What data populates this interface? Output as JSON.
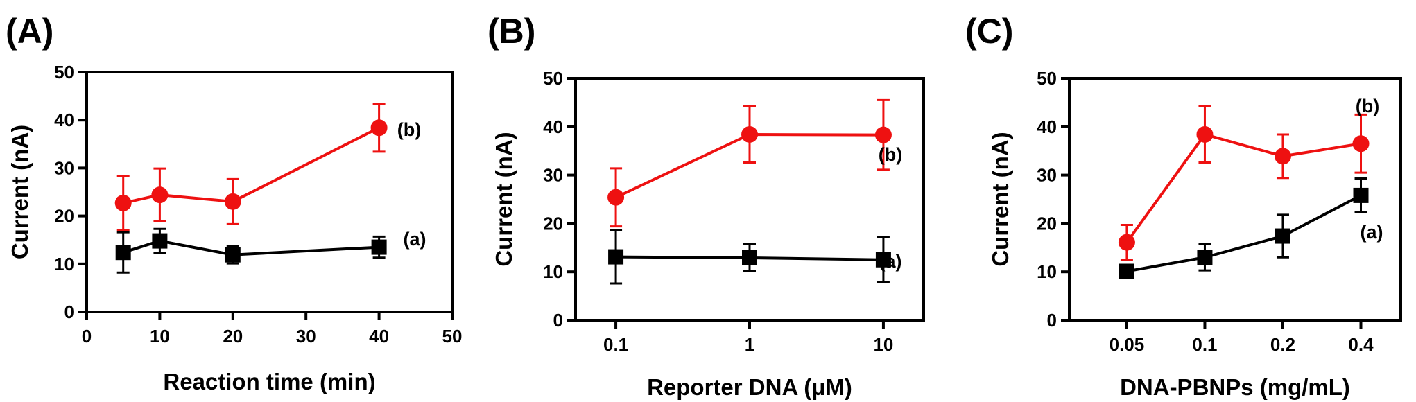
{
  "figure": {
    "background": "#ffffff",
    "colors": {
      "a": "#000000",
      "b": "#ee1111"
    }
  },
  "chart_data": [
    {
      "panel": "(A)",
      "type": "line",
      "xscale": "linear",
      "xlabel": "Reaction time (min)",
      "ylabel": "Current (nA)",
      "xlim": [
        0,
        50
      ],
      "ylim": [
        0,
        50
      ],
      "xticks": [
        0,
        10,
        20,
        30,
        40,
        50
      ],
      "xtick_labels": [
        "0",
        "10",
        "20",
        "30",
        "40",
        "50"
      ],
      "yticks": [
        0,
        10,
        20,
        30,
        40,
        50
      ],
      "ytick_labels": [
        "0",
        "10",
        "20",
        "30",
        "40",
        "50"
      ],
      "grid": false,
      "series": [
        {
          "name": "(a)",
          "marker": "square",
          "color": "#000000",
          "x": [
            5,
            10,
            20,
            40
          ],
          "y": [
            12.4,
            14.8,
            11.9,
            13.5
          ],
          "err": [
            4.2,
            2.5,
            1.8,
            2.2
          ]
        },
        {
          "name": "(b)",
          "marker": "circle",
          "color": "#ee1111",
          "x": [
            5,
            10,
            20,
            40
          ],
          "y": [
            22.7,
            24.4,
            23.0,
            38.4
          ],
          "err": [
            5.6,
            5.5,
            4.7,
            5.0
          ]
        }
      ]
    },
    {
      "panel": "(B)",
      "type": "line",
      "xscale": "log",
      "xlabel": "Reporter DNA (μM)",
      "ylabel": "Current (nA)",
      "xlim": [
        0.05,
        20
      ],
      "ylim": [
        0,
        50
      ],
      "xticks": [
        0.1,
        1,
        10
      ],
      "xtick_labels": [
        "0.1",
        "1",
        "10"
      ],
      "yticks": [
        0,
        10,
        20,
        30,
        40,
        50
      ],
      "ytick_labels": [
        "0",
        "10",
        "20",
        "30",
        "40",
        "50"
      ],
      "grid": false,
      "series": [
        {
          "name": "(a)",
          "marker": "square",
          "color": "#000000",
          "x": [
            0.1,
            1,
            10
          ],
          "y": [
            13.1,
            12.9,
            12.5
          ],
          "err": [
            5.5,
            2.8,
            4.7
          ]
        },
        {
          "name": "(b)",
          "marker": "circle",
          "color": "#ee1111",
          "x": [
            0.1,
            1,
            10
          ],
          "y": [
            25.4,
            38.4,
            38.3
          ],
          "err": [
            6.0,
            5.8,
            7.2
          ]
        }
      ]
    },
    {
      "panel": "(C)",
      "type": "line",
      "xscale": "log",
      "xlabel": "DNA-PBNPs (mg/mL)",
      "ylabel": "Current (nA)",
      "xlim": [
        0.03,
        0.57
      ],
      "ylim": [
        0,
        50
      ],
      "xticks": [
        0.05,
        0.1,
        0.2,
        0.4
      ],
      "xtick_labels": [
        "0.05",
        "0.1",
        "0.2",
        "0.4"
      ],
      "yticks": [
        0,
        10,
        20,
        30,
        40,
        50
      ],
      "ytick_labels": [
        "0",
        "10",
        "20",
        "30",
        "40",
        "50"
      ],
      "grid": false,
      "series": [
        {
          "name": "(a)",
          "marker": "square",
          "color": "#000000",
          "x": [
            0.05,
            0.1,
            0.2,
            0.4
          ],
          "y": [
            10.1,
            13.0,
            17.4,
            25.8
          ],
          "err": [
            1.2,
            2.7,
            4.4,
            3.5
          ]
        },
        {
          "name": "(b)",
          "marker": "circle",
          "color": "#ee1111",
          "x": [
            0.05,
            0.1,
            0.2,
            0.4
          ],
          "y": [
            16.1,
            38.4,
            33.9,
            36.5
          ],
          "err": [
            3.6,
            5.8,
            4.5,
            6.0
          ]
        }
      ]
    }
  ]
}
